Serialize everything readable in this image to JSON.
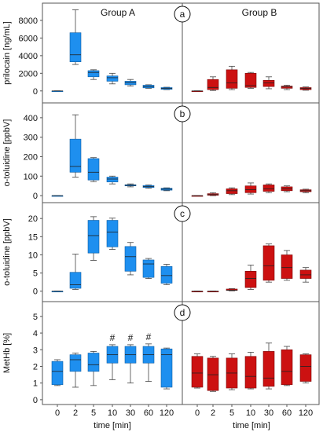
{
  "chart_data": [
    {
      "type": "box",
      "id": "a",
      "ylabel": "prilocain [ng/mL]",
      "ylim": [
        -1000,
        9600
      ],
      "yticks": [
        0,
        2000,
        4000,
        6000,
        8000
      ],
      "categories": [
        "0",
        "2",
        "5",
        "10",
        "30",
        "60",
        "120"
      ],
      "groups": [
        {
          "name": "Group A",
          "color": "#1E8FEF",
          "boxes": [
            {
              "min": 0,
              "q1": 0,
              "median": 0,
              "q3": 0,
              "max": 0
            },
            {
              "min": 3000,
              "q1": 3300,
              "median": 4100,
              "q3": 6600,
              "max": 9200
            },
            {
              "min": 1300,
              "q1": 1600,
              "median": 2100,
              "q3": 2300,
              "max": 2400
            },
            {
              "min": 800,
              "q1": 1100,
              "median": 1500,
              "q3": 1700,
              "max": 2000
            },
            {
              "min": 550,
              "q1": 700,
              "median": 950,
              "q3": 1100,
              "max": 1300
            },
            {
              "min": 300,
              "q1": 350,
              "median": 500,
              "q3": 650,
              "max": 700
            },
            {
              "min": 150,
              "q1": 180,
              "median": 280,
              "q3": 380,
              "max": 420
            }
          ]
        },
        {
          "name": "Group B",
          "color": "#CC1111",
          "boxes": [
            {
              "min": 0,
              "q1": 0,
              "median": 0,
              "q3": 0,
              "max": 0
            },
            {
              "min": 50,
              "q1": 150,
              "median": 400,
              "q3": 1300,
              "max": 1600
            },
            {
              "min": 150,
              "q1": 300,
              "median": 900,
              "q3": 2400,
              "max": 2800
            },
            {
              "min": 300,
              "q1": 400,
              "median": 600,
              "q3": 2000,
              "max": 2100
            },
            {
              "min": 250,
              "q1": 500,
              "median": 900,
              "q3": 1200,
              "max": 1600
            },
            {
              "min": 150,
              "q1": 300,
              "median": 450,
              "q3": 550,
              "max": 650
            },
            {
              "min": 80,
              "q1": 150,
              "median": 280,
              "q3": 380,
              "max": 450
            }
          ]
        }
      ],
      "annotations": []
    },
    {
      "type": "box",
      "id": "b",
      "ylabel": "o-toluidine [ppbV]",
      "ylim": [
        -20,
        460
      ],
      "yticks": [
        0,
        100,
        200,
        300,
        400
      ],
      "categories": [
        "0",
        "2",
        "5",
        "10",
        "30",
        "60",
        "120"
      ],
      "groups": [
        {
          "name": "Group A",
          "color": "#1E8FEF",
          "boxes": [
            {
              "min": 0,
              "q1": 0,
              "median": 0,
              "q3": 0,
              "max": 0
            },
            {
              "min": 95,
              "q1": 120,
              "median": 150,
              "q3": 290,
              "max": 415
            },
            {
              "min": 72,
              "q1": 80,
              "median": 120,
              "q3": 190,
              "max": 195
            },
            {
              "min": 60,
              "q1": 70,
              "median": 85,
              "q3": 95,
              "max": 100
            },
            {
              "min": 45,
              "q1": 50,
              "median": 53,
              "q3": 56,
              "max": 60
            },
            {
              "min": 38,
              "q1": 42,
              "median": 46,
              "q3": 52,
              "max": 55
            },
            {
              "min": 25,
              "q1": 28,
              "median": 33,
              "q3": 38,
              "max": 40
            }
          ]
        },
        {
          "name": "Group B",
          "color": "#CC1111",
          "boxes": [
            {
              "min": 0,
              "q1": 0,
              "median": 0,
              "q3": 0,
              "max": 0
            },
            {
              "min": 0,
              "q1": 2,
              "median": 5,
              "q3": 10,
              "max": 15
            },
            {
              "min": 5,
              "q1": 10,
              "median": 25,
              "q3": 35,
              "max": 40
            },
            {
              "min": 8,
              "q1": 15,
              "median": 30,
              "q3": 50,
              "max": 65
            },
            {
              "min": 15,
              "q1": 22,
              "median": 35,
              "q3": 55,
              "max": 60
            },
            {
              "min": 20,
              "q1": 25,
              "median": 35,
              "q3": 45,
              "max": 50
            },
            {
              "min": 15,
              "q1": 20,
              "median": 25,
              "q3": 30,
              "max": 33
            }
          ]
        }
      ],
      "annotations": []
    },
    {
      "type": "box",
      "id": "c",
      "ylabel": "o-toluidine [ppbV]",
      "ylim": [
        -2,
        23.5
      ],
      "yticks": [
        0,
        5,
        10,
        15,
        20
      ],
      "categories": [
        "0",
        "2",
        "5",
        "10",
        "30",
        "60",
        "120"
      ],
      "groups": [
        {
          "name": "Group A",
          "color": "#1E8FEF",
          "boxes": [
            {
              "min": 0,
              "q1": 0,
              "median": 0,
              "q3": 0,
              "max": 0
            },
            {
              "min": 0.5,
              "q1": 0.8,
              "median": 1.8,
              "q3": 5.2,
              "max": 10.2
            },
            {
              "min": 8.5,
              "q1": 10.5,
              "median": 15.3,
              "q3": 19.5,
              "max": 20.5
            },
            {
              "min": 11.5,
              "q1": 12.2,
              "median": 16.3,
              "q3": 19.5,
              "max": 20.1
            },
            {
              "min": 4.5,
              "q1": 5.5,
              "median": 9.5,
              "q3": 12.3,
              "max": 13.4
            },
            {
              "min": 3.5,
              "q1": 3.8,
              "median": 7.5,
              "q3": 8.6,
              "max": 9.0
            },
            {
              "min": 1.8,
              "q1": 2.2,
              "median": 4.3,
              "q3": 6.8,
              "max": 7.4
            }
          ]
        },
        {
          "name": "Group B",
          "color": "#CC1111",
          "boxes": [
            {
              "min": 0,
              "q1": 0,
              "median": 0,
              "q3": 0,
              "max": 0
            },
            {
              "min": 0,
              "q1": 0,
              "median": 0,
              "q3": 0,
              "max": 0
            },
            {
              "min": 0.1,
              "q1": 0.2,
              "median": 0.3,
              "q3": 0.6,
              "max": 0.7
            },
            {
              "min": 0.5,
              "q1": 1.0,
              "median": 3.5,
              "q3": 5.5,
              "max": 7.2
            },
            {
              "min": 2.5,
              "q1": 3.0,
              "median": 7.0,
              "q3": 12.5,
              "max": 13.0
            },
            {
              "min": 3.0,
              "q1": 3.5,
              "median": 6.5,
              "q3": 10.0,
              "max": 11.2
            },
            {
              "min": 2.5,
              "q1": 3.5,
              "median": 4.5,
              "q3": 5.8,
              "max": 6.5
            }
          ]
        }
      ],
      "annotations": []
    },
    {
      "type": "box",
      "id": "d",
      "ylabel": "MetHb [%]",
      "xlabel": "time [min]",
      "ylim": [
        -0.1,
        5.7
      ],
      "yticks": [
        0,
        1,
        2,
        3,
        4,
        5
      ],
      "categories": [
        "0",
        "2",
        "5",
        "10",
        "30",
        "60",
        "120"
      ],
      "groups": [
        {
          "name": "Group A",
          "color": "#1E8FEF",
          "boxes": [
            {
              "min": 0.85,
              "q1": 0.9,
              "median": 1.7,
              "q3": 2.3,
              "max": 2.4
            },
            {
              "min": 0.75,
              "q1": 1.7,
              "median": 2.4,
              "q3": 2.7,
              "max": 2.8
            },
            {
              "min": 0.85,
              "q1": 1.7,
              "median": 2.1,
              "q3": 2.8,
              "max": 2.9
            },
            {
              "min": 1.2,
              "q1": 2.2,
              "median": 2.7,
              "q3": 3.2,
              "max": 3.3
            },
            {
              "min": 1.0,
              "q1": 2.2,
              "median": 2.7,
              "q3": 3.2,
              "max": 3.3
            },
            {
              "min": 1.1,
              "q1": 2.2,
              "median": 2.7,
              "q3": 3.2,
              "max": 3.35
            },
            {
              "min": 0.65,
              "q1": 0.75,
              "median": 2.7,
              "q3": 3.05,
              "max": 3.1
            }
          ]
        },
        {
          "name": "Group B",
          "color": "#CC1111",
          "boxes": [
            {
              "min": 0.7,
              "q1": 0.75,
              "median": 1.6,
              "q3": 2.6,
              "max": 2.75
            },
            {
              "min": 0.5,
              "q1": 0.55,
              "median": 1.5,
              "q3": 2.5,
              "max": 2.6
            },
            {
              "min": 0.6,
              "q1": 0.7,
              "median": 1.6,
              "q3": 2.5,
              "max": 2.75
            },
            {
              "min": 0.65,
              "q1": 0.7,
              "median": 1.4,
              "q3": 2.6,
              "max": 2.85
            },
            {
              "min": 0.65,
              "q1": 0.8,
              "median": 1.3,
              "q3": 2.9,
              "max": 3.4
            },
            {
              "min": 0.85,
              "q1": 0.9,
              "median": 1.7,
              "q3": 3.0,
              "max": 3.2
            },
            {
              "min": 1.0,
              "q1": 1.1,
              "median": 2.0,
              "q3": 2.7,
              "max": 2.75
            }
          ]
        }
      ],
      "annotations": [
        {
          "group": 0,
          "category": "10",
          "text": "#"
        },
        {
          "group": 0,
          "category": "30",
          "text": "#"
        },
        {
          "group": 0,
          "category": "60",
          "text": "#"
        }
      ]
    }
  ]
}
